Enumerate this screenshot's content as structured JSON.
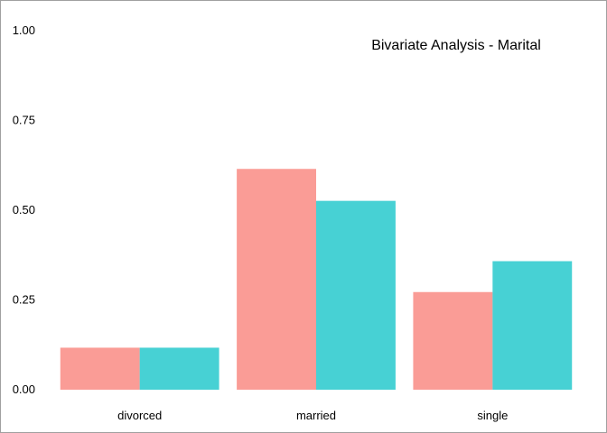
{
  "chart_data": {
    "type": "bar",
    "title": "Bivariate Analysis - Marital",
    "xlabel": "",
    "ylabel": "",
    "categories": [
      "divorced",
      "married",
      "single"
    ],
    "series": [
      {
        "values": [
          0.117,
          0.615,
          0.272
        ],
        "color": "#F8766D"
      },
      {
        "values": [
          0.117,
          0.526,
          0.358
        ],
        "color": "#00BFC4"
      }
    ],
    "ylim": [
      0,
      1
    ],
    "yticks": [
      "0.00",
      "0.25",
      "0.50",
      "0.75",
      "1.00"
    ],
    "grid": false,
    "legend": "none"
  }
}
